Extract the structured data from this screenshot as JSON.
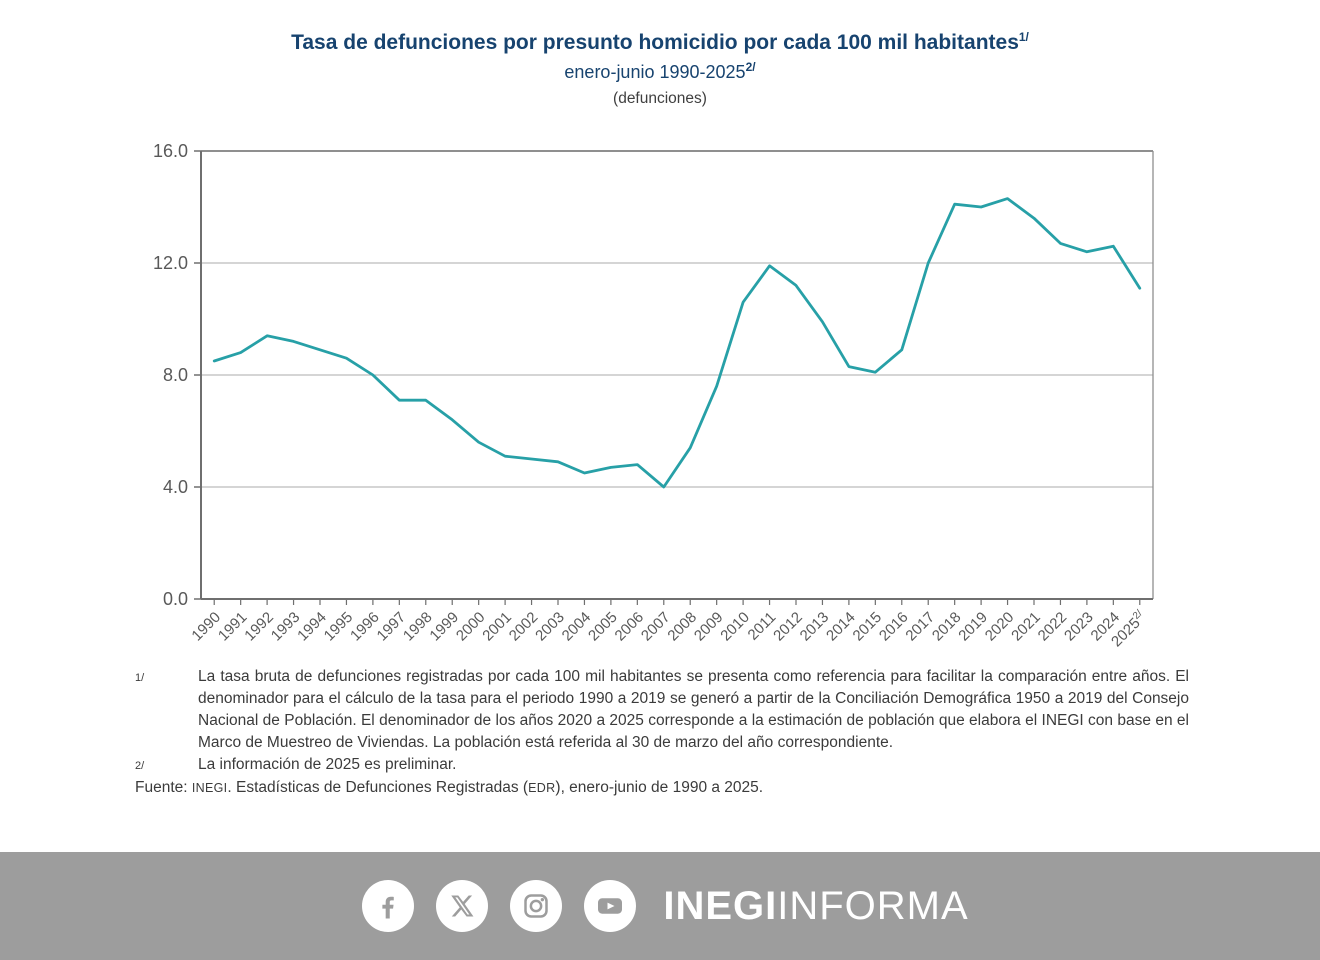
{
  "header": {
    "title": "Tasa de defunciones por presunto homicidio por cada 100 mil habitantes",
    "title_sup": "1/",
    "subtitle": "enero-junio 1990-2025",
    "subtitle_sup": "2/",
    "unit_label": "(defunciones)"
  },
  "chart_data": {
    "type": "line",
    "title": "Tasa de defunciones por presunto homicidio por cada 100 mil habitantes, enero-junio 1990-2025",
    "x": [
      1990,
      1991,
      1992,
      1993,
      1994,
      1995,
      1996,
      1997,
      1998,
      1999,
      2000,
      2001,
      2002,
      2003,
      2004,
      2005,
      2006,
      2007,
      2008,
      2009,
      2010,
      2011,
      2012,
      2013,
      2014,
      2015,
      2016,
      2017,
      2018,
      2019,
      2020,
      2021,
      2022,
      2023,
      2024,
      2025
    ],
    "series": [
      {
        "name": "Tasa de defunciones por presunto homicidio por cada 100 mil habitantes",
        "values": [
          8.5,
          8.8,
          9.4,
          9.2,
          8.9,
          8.6,
          8.0,
          7.1,
          7.1,
          6.4,
          5.6,
          5.1,
          5.0,
          4.9,
          4.5,
          4.7,
          4.8,
          4.0,
          5.4,
          7.6,
          10.6,
          11.9,
          11.2,
          9.9,
          8.3,
          8.1,
          8.9,
          12.0,
          14.1,
          14.0,
          14.3,
          13.6,
          12.7,
          12.4,
          12.6,
          11.1
        ]
      }
    ],
    "ylim": [
      0,
      16
    ],
    "yticks": [
      0,
      4,
      8,
      12,
      16
    ],
    "ytick_labels": [
      "0.0",
      "4.0",
      "8.0",
      "12.0",
      "16.0"
    ],
    "last_x_sup": "2/",
    "line_color": "#27A0A7",
    "grid_color": "#ABABAB",
    "axis_color": "#6F6F6F",
    "border_color": "#8F8F8F",
    "tick_label_color": "#595959",
    "grid": true,
    "legend": false,
    "xlabel": "",
    "ylabel": ""
  },
  "footnotes": [
    {
      "marker": "1/",
      "text": "La tasa bruta de defunciones registradas por cada 100 mil habitantes se presenta como referencia para facilitar la comparación entre años. El denominador para el cálculo de la tasa para el periodo 1990 a 2019 se generó a partir de la Conciliación Demográfica 1950 a 2019 del Consejo Nacional de Población. El denominador de los años 2020 a 2025 corresponde a la estimación de población que elabora el INEGI con base en el Marco de Muestreo de Viviendas. La población está referida al 30 de marzo del año correspondiente."
    },
    {
      "marker": "2/",
      "text": "La información de 2025 es preliminar."
    }
  ],
  "source": {
    "label": "Fuente:",
    "inegi": "INEGI",
    "part2": ". Estadísticas de Defunciones Registradas (",
    "edr": "EDR",
    "part3": "), enero-junio de 1990 a 2025."
  },
  "footer": {
    "icons": [
      "facebook-icon",
      "x-icon",
      "instagram-icon",
      "youtube-icon"
    ],
    "brand_bold": "INEGI",
    "brand_regular": "INFORMA",
    "banner_color": "#9D9D9D"
  }
}
